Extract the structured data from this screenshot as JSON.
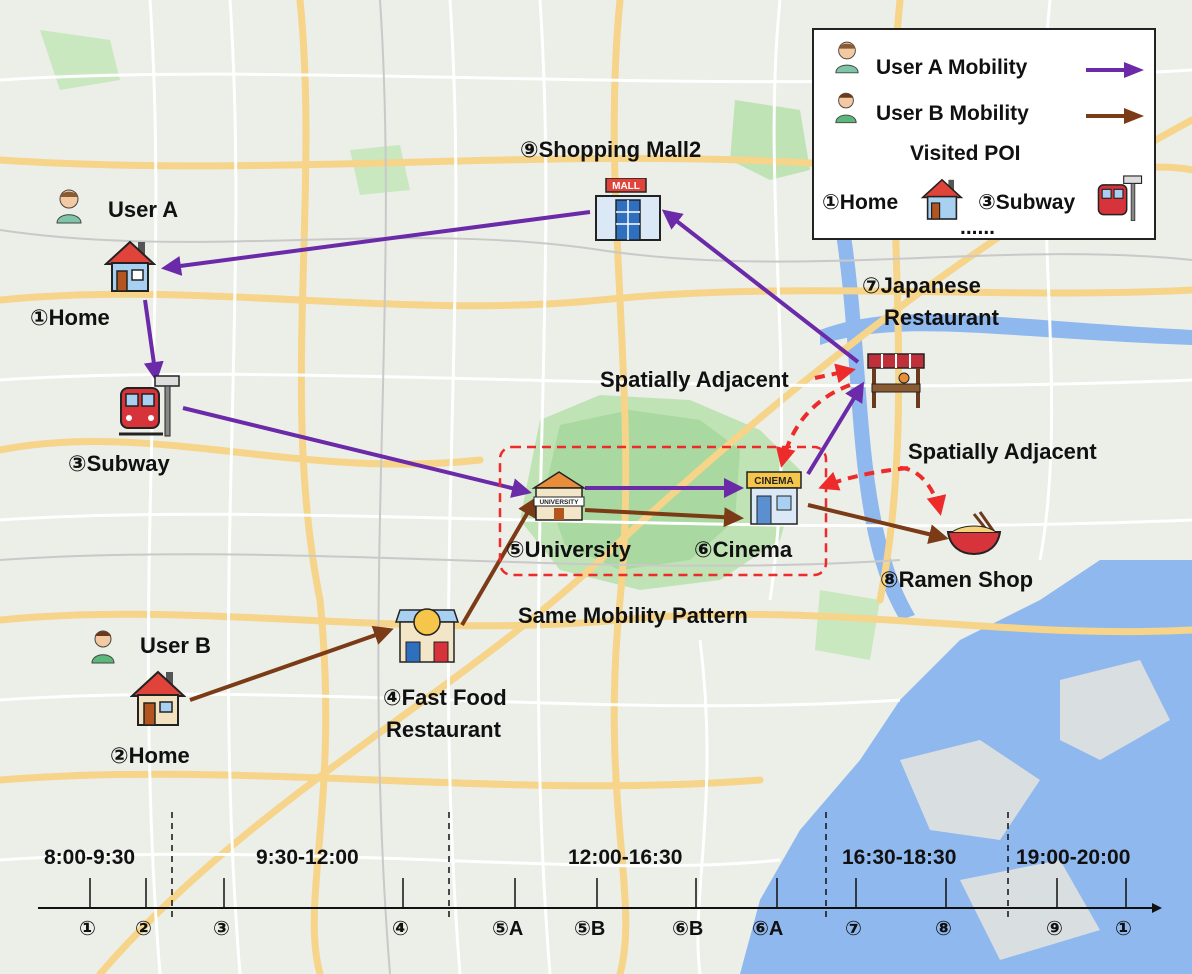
{
  "map": {
    "colors": {
      "land": "#eceee8",
      "park": "#bfe3b4",
      "water": "#8fb8ee",
      "road_major": "#f6d48a",
      "road_minor": "#ffffff",
      "user_a_arrow": "#6b2aa8",
      "user_b_arrow": "#7a3b16",
      "adjacent_arrow": "#ee2b2b",
      "group_box": "#ee2b2b"
    }
  },
  "labels": {
    "user_a": "User A",
    "user_b": "User B",
    "poi_1": "①Home",
    "poi_2": "②Home",
    "poi_3": "③Subway",
    "poi_4_line1": "④Fast Food",
    "poi_4_line2": "Restaurant",
    "poi_5": "⑤University",
    "poi_6": "⑥Cinema",
    "poi_7_line1": "⑦Japanese",
    "poi_7_line2": "Restaurant",
    "poi_8": "⑧Ramen Shop",
    "poi_9": "⑨Shopping Mall2",
    "spatially_adjacent_1": "Spatially Adjacent",
    "spatially_adjacent_2": "Spatially Adjacent",
    "same_pattern": "Same Mobility Pattern",
    "mall_sign": "MALL",
    "cinema_sign": "CINEMA",
    "university_sign": "UNIVERSITY"
  },
  "legend": {
    "user_a": "User A Mobility",
    "user_b": "User B Mobility",
    "visited": "Visited POI",
    "home": "①Home",
    "subway": "③Subway",
    "more": "......"
  },
  "timeline": {
    "periods": [
      "8:00-9:30",
      "9:30-12:00",
      "12:00-16:30",
      "16:30-18:30",
      "19:00-20:00"
    ],
    "ticks": [
      "①",
      "②",
      "③",
      "④",
      "⑤A",
      "⑤B",
      "⑥B",
      "⑥A",
      "⑦",
      "⑧",
      "⑨",
      "①"
    ]
  }
}
